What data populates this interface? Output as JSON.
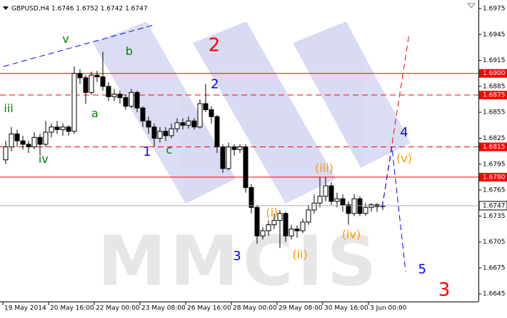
{
  "chart_data": {
    "type": "candlestick",
    "title": "GBPUSD,H4  1.6746 1.6752 1.6742 1.6747",
    "watermark": "MMCIS",
    "open": [
      1.68,
      1.6815,
      1.683,
      1.6822,
      1.6818,
      1.6815,
      1.6826,
      1.6818,
      1.6832,
      1.6838,
      1.6835,
      1.6838,
      1.6833,
      1.69,
      1.6895,
      1.6878,
      1.6898,
      1.6896,
      1.6885,
      1.6873,
      1.6876,
      1.6872,
      1.6862,
      1.6878,
      1.686,
      1.6845,
      1.6838,
      1.6825,
      1.6833,
      1.6828,
      1.6836,
      1.6843,
      1.684,
      1.6845,
      1.6838,
      1.6865,
      1.6858,
      1.685,
      1.6815,
      1.679,
      1.6815,
      1.6812,
      1.6815,
      1.6768,
      1.6745,
      1.6712,
      1.6718,
      1.6725,
      1.673,
      1.6738,
      1.6712,
      1.672,
      1.6718,
      1.6728,
      1.6742,
      1.675,
      1.6758,
      1.677,
      1.6752,
      1.6755,
      1.6748,
      1.6738,
      1.6755,
      1.6738,
      1.6745,
      1.6748,
      1.6746
    ],
    "high": [
      1.6822,
      1.6838,
      1.6835,
      1.6828,
      1.6822,
      1.6832,
      1.683,
      1.6845,
      1.6842,
      1.6845,
      1.6842,
      1.684,
      1.6908,
      1.6905,
      1.6898,
      1.6902,
      1.6903,
      1.6925,
      1.689,
      1.6882,
      1.688,
      1.6875,
      1.6882,
      1.688,
      1.6862,
      1.685,
      1.6842,
      1.6838,
      1.6838,
      1.6842,
      1.6848,
      1.6848,
      1.685,
      1.6848,
      1.687,
      1.6888,
      1.6862,
      1.6852,
      1.6818,
      1.682,
      1.6818,
      1.6818,
      1.6818,
      1.6772,
      1.6748,
      1.6722,
      1.673,
      1.6738,
      1.6742,
      1.674,
      1.6725,
      1.6724,
      1.6732,
      1.6748,
      1.676,
      1.678,
      1.678,
      1.6774,
      1.6762,
      1.676,
      1.6752,
      1.676,
      1.6758,
      1.675,
      1.675,
      1.675,
      1.6752
    ],
    "low": [
      1.6795,
      1.681,
      1.6815,
      1.6812,
      1.6808,
      1.6812,
      1.6805,
      1.6815,
      1.6826,
      1.683,
      1.6828,
      1.6828,
      1.683,
      1.6888,
      1.6865,
      1.6875,
      1.689,
      1.688,
      1.6868,
      1.6868,
      1.6865,
      1.6858,
      1.686,
      1.6855,
      1.6838,
      1.683,
      1.6815,
      1.682,
      1.6822,
      1.6825,
      1.6832,
      1.6835,
      1.6836,
      1.6835,
      1.6836,
      1.6855,
      1.6842,
      1.6808,
      1.6785,
      1.6788,
      1.6805,
      1.6808,
      1.6762,
      1.6738,
      1.6703,
      1.6708,
      1.6712,
      1.672,
      1.6698,
      1.6705,
      1.6708,
      1.671,
      1.6715,
      1.6725,
      1.6738,
      1.6745,
      1.6752,
      1.6748,
      1.6745,
      1.674,
      1.6725,
      1.6735,
      1.6735,
      1.6735,
      1.674,
      1.674,
      1.6742
    ],
    "close": [
      1.6815,
      1.683,
      1.6822,
      1.6818,
      1.6815,
      1.6826,
      1.6818,
      1.6832,
      1.6838,
      1.6835,
      1.6838,
      1.6833,
      1.69,
      1.6895,
      1.6878,
      1.6898,
      1.6896,
      1.6885,
      1.6873,
      1.6876,
      1.6872,
      1.6862,
      1.6878,
      1.686,
      1.6845,
      1.6838,
      1.6825,
      1.6833,
      1.6828,
      1.6836,
      1.6843,
      1.684,
      1.6845,
      1.6838,
      1.6865,
      1.6858,
      1.685,
      1.6815,
      1.679,
      1.6815,
      1.6812,
      1.6815,
      1.6768,
      1.6745,
      1.6712,
      1.6718,
      1.6725,
      1.673,
      1.6738,
      1.6712,
      1.672,
      1.6718,
      1.6728,
      1.6742,
      1.675,
      1.6758,
      1.677,
      1.6752,
      1.6755,
      1.6748,
      1.6738,
      1.6755,
      1.6738,
      1.6745,
      1.6748,
      1.6746,
      1.6747
    ],
    "xlim": [
      -1,
      82.75
    ],
    "ylim": [
      1.66361,
      1.69849
    ],
    "xticks": [
      {
        "value": -0.5,
        "label": "19 May 2014"
      },
      {
        "value": 7.5,
        "label": "20 May 16:00"
      },
      {
        "value": 15.5,
        "label": "22 May 00:00"
      },
      {
        "value": 23.5,
        "label": "23 May 08:00"
      },
      {
        "value": 31.5,
        "label": "26 May 16:00"
      },
      {
        "value": 39.5,
        "label": "28 May 00:00"
      },
      {
        "value": 47.5,
        "label": "29 May 08:00"
      },
      {
        "value": 55.5,
        "label": "30 May 16:00"
      },
      {
        "value": 63.5,
        "label": "3 Jun 00:00"
      }
    ],
    "yticks": [
      1.6975,
      1.6945,
      1.6915,
      1.6885,
      1.6855,
      1.6825,
      1.6795,
      1.6765,
      1.6735,
      1.6705,
      1.6675,
      1.6645
    ],
    "levels": [
      {
        "value": 1.69,
        "label": "1.6900",
        "style": "solid"
      },
      {
        "value": 1.6875,
        "label": "1.6875",
        "style": "dashed"
      },
      {
        "value": 1.6815,
        "label": "1.6815",
        "style": "dashed"
      },
      {
        "value": 1.678,
        "label": "1.6780",
        "style": "solid"
      }
    ],
    "level_color": "#ff0000",
    "last_price": 1.6747,
    "lines": [
      {
        "color": "#0000ff",
        "style": "dashed",
        "x": [
          -0.375,
          25.9
        ],
        "y": [
          1.6908,
          1.6956
        ]
      },
      {
        "color": "#ff0000",
        "style": "dashed",
        "x": [
          65.9,
          70.6
        ],
        "y": [
          1.6745,
          1.6945
        ]
      },
      {
        "color": "#0000ff",
        "style": "dashed",
        "x": [
          65.9,
          67.6,
          70
        ],
        "y": [
          1.6745,
          1.6815,
          1.6671
        ]
      }
    ],
    "annotations": [
      {
        "text": "v",
        "color": "#008000",
        "x": 10.5,
        "y": 1.6939
      },
      {
        "text": "b",
        "color": "#008000",
        "x": 21.6,
        "y": 1.6925
      },
      {
        "text": "iii",
        "color": "#008000",
        "x": 0.5,
        "y": 1.6859
      },
      {
        "text": "a",
        "color": "#008000",
        "x": 15.6,
        "y": 1.6853
      },
      {
        "text": "iv",
        "color": "#008000",
        "x": 6.6,
        "y": 1.68
      },
      {
        "text": "1",
        "color": "#0000ff",
        "x": 24.75,
        "y": 1.6809
      },
      {
        "text": "c",
        "color": "#008000",
        "x": 28.6,
        "y": 1.6811
      },
      {
        "text": "2",
        "color": "#0000ff",
        "x": 36.6,
        "y": 1.6887
      },
      {
        "text": "2",
        "color": "#ff0000",
        "x": 36.5,
        "y": 1.6932
      },
      {
        "text": "3",
        "color": "#0000ff",
        "x": 40.5,
        "y": 1.6688
      },
      {
        "text": "(i)",
        "color": "#ff9900",
        "x": 46.6,
        "y": 1.6738
      },
      {
        "text": "(ii)",
        "color": "#ff9900",
        "x": 51.5,
        "y": 1.669
      },
      {
        "text": "(iii)",
        "color": "#ff9900",
        "x": 55.75,
        "y": 1.679
      },
      {
        "text": "(iv)",
        "color": "#ff9900",
        "x": 60.5,
        "y": 1.6713
      },
      {
        "text": "4",
        "color": "#0000ff",
        "x": 69.75,
        "y": 1.6831
      },
      {
        "text": "(v)",
        "color": "#ff9900",
        "x": 69.75,
        "y": 1.6801
      },
      {
        "text": "5",
        "color": "#0000ff",
        "x": 72.9,
        "y": 1.6673
      },
      {
        "text": "3",
        "color": "#ff0000",
        "x": 76.75,
        "y": 1.6649
      }
    ]
  }
}
